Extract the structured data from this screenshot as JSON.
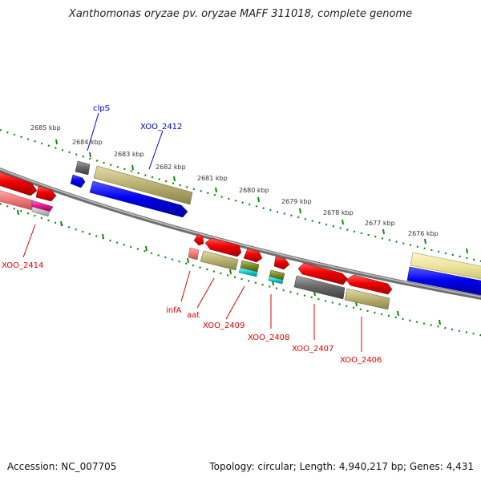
{
  "title": "Xanthomonas oryzae pv. oryzae MAFF 311018, complete genome",
  "footer": {
    "accession": "Accession: NC_007705",
    "summary": "Topology: circular; Length: 4,940,217 bp; Genes: 4,431"
  },
  "ruler": {
    "ticks": [
      {
        "label": "2685 kbp"
      },
      {
        "label": "2684 kbp"
      },
      {
        "label": "2683 kbp"
      },
      {
        "label": "2682 kbp"
      },
      {
        "label": "2681 kbp"
      },
      {
        "label": "2680 kbp"
      },
      {
        "label": "2679 kbp"
      },
      {
        "label": "2678 kbp"
      },
      {
        "label": "2677 kbp"
      },
      {
        "label": "2676 kbp"
      }
    ]
  },
  "gene_labels": {
    "clpS": "clpS",
    "XOO_2412": "XOO_2412",
    "XOO_2414": "XOO_2414",
    "infA": "infA",
    "aat": "aat",
    "XOO_2409": "XOO_2409",
    "XOO_2408": "XOO_2408",
    "XOO_2407": "XOO_2407",
    "XOO_2406": "XOO_2406"
  },
  "colors": {
    "forward_label": "#0000cc",
    "reverse_label": "#dd0000",
    "red_gene": "#ee0000",
    "khaki_gene": "#b8b070",
    "blue_gene": "#0000ee",
    "gray_gene": "#6a6a6a",
    "tick_green": "#118811",
    "backbone": "#888888"
  }
}
